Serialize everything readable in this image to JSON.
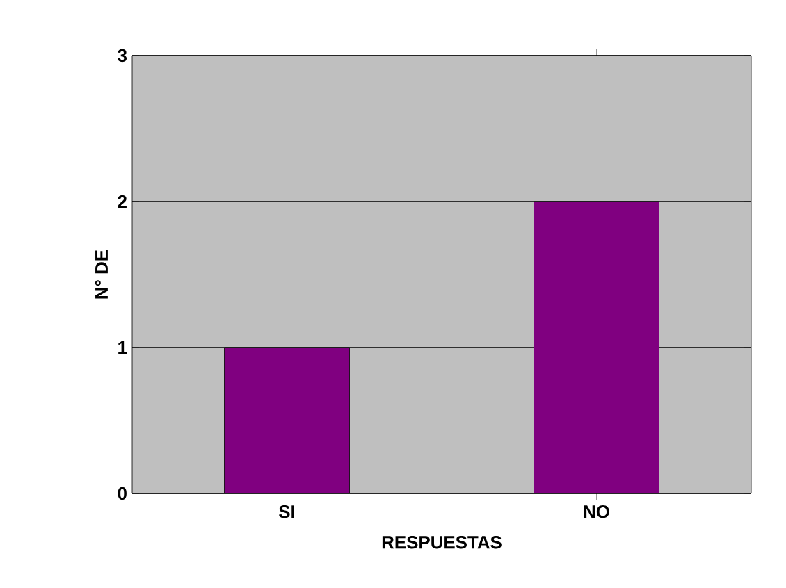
{
  "chart_data": {
    "type": "bar",
    "xlabel": "RESPUESTAS",
    "ylabel": "N° DE",
    "categories": [
      "SI",
      "NO"
    ],
    "values": [
      1,
      2
    ],
    "color": "#800080",
    "ylim": [
      0,
      3
    ],
    "yticks": [
      0,
      1,
      2,
      3
    ],
    "grid": "y"
  }
}
